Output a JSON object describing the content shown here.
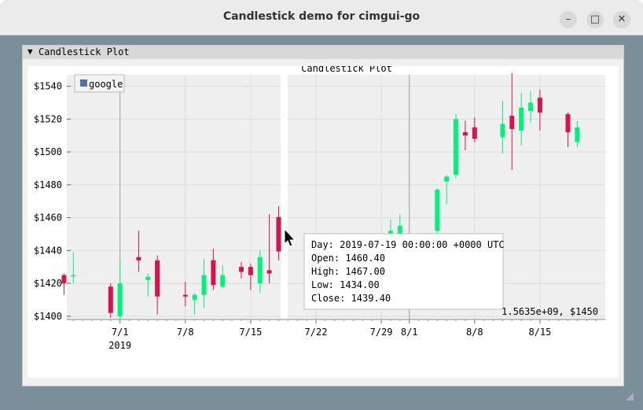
{
  "window": {
    "title": "Candlestick demo for cimgui-go",
    "buttons": {
      "minimize": "–",
      "maximize": "□",
      "close": "✕"
    }
  },
  "panel": {
    "arrow": "▼",
    "label": "Candlestick Plot"
  },
  "chart_data": {
    "type": "candlestick",
    "title": "Candlestick Plot",
    "ylim": [
      1398,
      1547
    ],
    "y_ticks": [
      "$1540",
      "$1520",
      "$1500",
      "$1480",
      "$1460",
      "$1440",
      "$1420",
      "$1400"
    ],
    "y_tick_values": [
      1540,
      1520,
      1500,
      1480,
      1460,
      1440,
      1420,
      1400
    ],
    "x_ticks": [
      {
        "label": "7/1",
        "day": 2,
        "sub": "2019"
      },
      {
        "label": "7/8",
        "day": 9
      },
      {
        "label": "7/15",
        "day": 16
      },
      {
        "label": "7/22",
        "day": 23
      },
      {
        "label": "7/29",
        "day": 30
      },
      {
        "label": "8/1",
        "day": 33
      },
      {
        "label": "8/8",
        "day": 40
      },
      {
        "label": "8/15",
        "day": 47
      }
    ],
    "xlim": [
      -3.7,
      54.0
    ],
    "legend": {
      "entry": "google",
      "color": "#4c72b0",
      "placement": "top-left"
    },
    "colors": {
      "up": "#00f27b",
      "down": "#d6134f",
      "background": "#f0f0f0",
      "grid": "#dcdcdc"
    },
    "candles": [
      {
        "day": -4,
        "open": 1425,
        "high": 1426,
        "low": 1413,
        "close": 1420
      },
      {
        "day": -3,
        "open": 1425,
        "high": 1439,
        "low": 1420,
        "close": 1425
      },
      {
        "day": 1,
        "open": 1418,
        "high": 1420,
        "low": 1399,
        "close": 1402
      },
      {
        "day": 2,
        "open": 1400,
        "high": 1435,
        "low": 1398,
        "close": 1420
      },
      {
        "day": 4,
        "open": 1436,
        "high": 1452,
        "low": 1427,
        "close": 1434
      },
      {
        "day": 5,
        "open": 1422,
        "high": 1426,
        "low": 1412,
        "close": 1424
      },
      {
        "day": 6,
        "open": 1434,
        "high": 1437,
        "low": 1401,
        "close": 1412
      },
      {
        "day": 9,
        "open": 1413,
        "high": 1421,
        "low": 1406,
        "close": 1412
      },
      {
        "day": 10,
        "open": 1410,
        "high": 1414,
        "low": 1401,
        "close": 1413
      },
      {
        "day": 11,
        "open": 1413,
        "high": 1435,
        "low": 1405,
        "close": 1425
      },
      {
        "day": 12,
        "open": 1434,
        "high": 1441,
        "low": 1416,
        "close": 1419
      },
      {
        "day": 13,
        "open": 1418,
        "high": 1431,
        "low": 1417,
        "close": 1425
      },
      {
        "day": 15,
        "open": 1430,
        "high": 1433,
        "low": 1423,
        "close": 1427
      },
      {
        "day": 16,
        "open": 1430,
        "high": 1432,
        "low": 1416,
        "close": 1425
      },
      {
        "day": 17,
        "open": 1420,
        "high": 1440,
        "low": 1414,
        "close": 1436
      },
      {
        "day": 18,
        "open": 1428,
        "high": 1462,
        "low": 1420,
        "close": 1426
      },
      {
        "day": 19,
        "open": 1460.4,
        "high": 1467,
        "low": 1434,
        "close": 1439.4
      },
      {
        "day": 31,
        "open": 1445,
        "high": 1459,
        "low": 1440,
        "close": 1452
      },
      {
        "day": 32,
        "open": 1450,
        "high": 1462,
        "low": 1443,
        "close": 1455
      },
      {
        "day": 36,
        "open": 1452,
        "high": 1478,
        "low": 1450,
        "close": 1477
      },
      {
        "day": 37,
        "open": 1482,
        "high": 1486,
        "low": 1468,
        "close": 1485
      },
      {
        "day": 38,
        "open": 1486,
        "high": 1523,
        "low": 1484,
        "close": 1520
      },
      {
        "day": 39,
        "open": 1512,
        "high": 1519,
        "low": 1501,
        "close": 1510
      },
      {
        "day": 40,
        "open": 1515,
        "high": 1521,
        "low": 1506,
        "close": 1508
      },
      {
        "day": 43,
        "open": 1509,
        "high": 1531,
        "low": 1499,
        "close": 1517
      },
      {
        "day": 44,
        "open": 1522,
        "high": 1548,
        "low": 1489,
        "close": 1514
      },
      {
        "day": 45,
        "open": 1513,
        "high": 1536,
        "low": 1504,
        "close": 1527
      },
      {
        "day": 46,
        "open": 1525,
        "high": 1537,
        "low": 1518,
        "close": 1530
      },
      {
        "day": 47,
        "open": 1533,
        "high": 1538,
        "low": 1513,
        "close": 1524
      },
      {
        "day": 50,
        "open": 1523,
        "high": 1524,
        "low": 1503,
        "close": 1512
      },
      {
        "day": 51,
        "open": 1506,
        "high": 1519,
        "low": 1503,
        "close": 1515
      }
    ],
    "tooltip": {
      "day": "Day: 2019-07-19 00:00:00 +0000 UTC",
      "open": "Open: 1460.40",
      "high": "High: 1467.00",
      "low": "Low: 1434.00",
      "close": "Close: 1439.40"
    },
    "mouse_readout": "1.5635e+09, $1450",
    "crosshair_days": [
      2,
      33
    ]
  }
}
